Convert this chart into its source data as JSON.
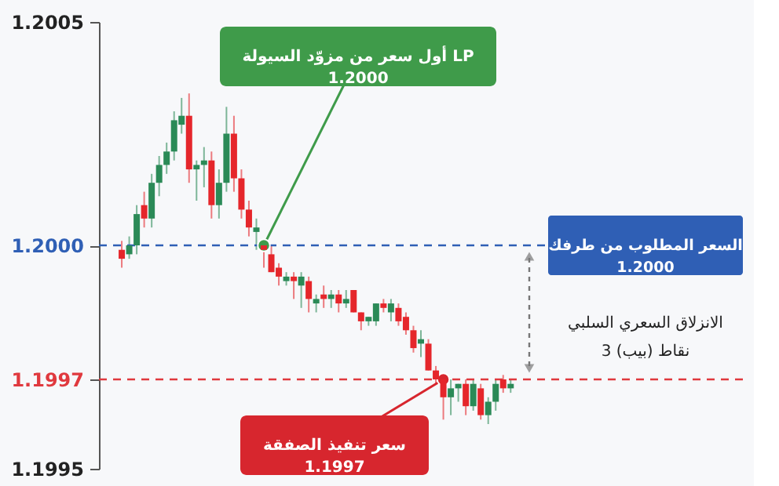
{
  "chart_data": {
    "type": "candlestick",
    "categories": [
      null,
      null,
      null,
      null,
      null,
      null,
      null,
      null,
      null,
      null,
      null,
      null,
      null,
      null,
      null,
      null,
      null,
      null,
      null,
      null,
      null,
      null,
      null,
      null,
      null,
      null,
      null,
      null,
      null,
      null,
      null,
      null,
      null,
      null,
      null,
      null,
      null,
      null,
      null,
      null,
      null,
      null,
      null,
      null,
      null,
      null,
      null,
      null,
      null,
      null,
      null,
      null,
      null
    ],
    "ohlc": [
      [
        1.19999,
        1.20001,
        1.19995,
        1.19997
      ],
      [
        1.19998,
        1.20002,
        1.19997,
        1.2
      ],
      [
        1.2,
        1.20009,
        1.19998,
        1.20007
      ],
      [
        1.20009,
        1.20012,
        1.20004,
        1.20006
      ],
      [
        1.20006,
        1.20016,
        1.20004,
        1.20014
      ],
      [
        1.20014,
        1.2002,
        1.20011,
        1.20018
      ],
      [
        1.20018,
        1.20023,
        1.20016,
        1.20021
      ],
      [
        1.20021,
        1.2003,
        1.20019,
        1.20028
      ],
      [
        1.20027,
        1.20033,
        1.20025,
        1.20029
      ],
      [
        1.20029,
        1.20034,
        1.20014,
        1.20017
      ],
      [
        1.20017,
        1.20019,
        1.2001,
        1.20018
      ],
      [
        1.20018,
        1.20022,
        1.20013,
        1.20019
      ],
      [
        1.20019,
        1.20021,
        1.20006,
        1.20009
      ],
      [
        1.20009,
        1.20017,
        1.20006,
        1.20014
      ],
      [
        1.20014,
        1.20031,
        1.20012,
        1.20025
      ],
      [
        1.20025,
        1.20029,
        1.20012,
        1.20015
      ],
      [
        1.20015,
        1.20017,
        1.20006,
        1.20008
      ],
      [
        1.20008,
        1.2001,
        1.20002,
        1.20004
      ],
      [
        1.20003,
        1.20006,
        1.19999,
        1.20004
      ],
      [
        1.2,
        1.20001,
        1.19995,
        1.19999
      ],
      [
        1.19998,
        1.2,
        1.19994,
        1.19994
      ],
      [
        1.19995,
        1.19996,
        1.19991,
        1.19993
      ],
      [
        1.19992,
        1.19994,
        1.19991,
        1.19993
      ],
      [
        1.19993,
        1.19994,
        1.19988,
        1.19992
      ],
      [
        1.19991,
        1.19994,
        1.19986,
        1.19993
      ],
      [
        1.19992,
        1.19993,
        1.19985,
        1.19988
      ],
      [
        1.19987,
        1.19989,
        1.19985,
        1.19988
      ],
      [
        1.19989,
        1.19991,
        1.19986,
        1.19988
      ],
      [
        1.19988,
        1.1999,
        1.19986,
        1.19989
      ],
      [
        1.19989,
        1.1999,
        1.19985,
        1.19987
      ],
      [
        1.19987,
        1.1999,
        1.19986,
        1.19988
      ],
      [
        1.1999,
        1.1999,
        1.19985,
        1.19985
      ],
      [
        1.19985,
        1.19985,
        1.19981,
        1.19983
      ],
      [
        1.19983,
        1.19984,
        1.19982,
        1.19984
      ],
      [
        1.19983,
        1.19987,
        1.19982,
        1.19987
      ],
      [
        1.19987,
        1.19988,
        1.19985,
        1.19986
      ],
      [
        1.19985,
        1.19988,
        1.19983,
        1.19987
      ],
      [
        1.19986,
        1.19987,
        1.19982,
        1.19983
      ],
      [
        1.19984,
        1.19985,
        1.1998,
        1.19981
      ],
      [
        1.19981,
        1.19982,
        1.19976,
        1.19977
      ],
      [
        1.19978,
        1.19981,
        1.19975,
        1.19979
      ],
      [
        1.19978,
        1.19979,
        1.19972,
        1.19972
      ],
      [
        1.19972,
        1.19973,
        1.19969,
        1.1997
      ],
      [
        1.1997,
        1.1997,
        1.19961,
        1.19966
      ],
      [
        1.19966,
        1.1997,
        1.19962,
        1.19968
      ],
      [
        1.19968,
        1.19969,
        1.19965,
        1.19969
      ],
      [
        1.19969,
        1.1997,
        1.19962,
        1.19964
      ],
      [
        1.19964,
        1.1997,
        1.19963,
        1.19969
      ],
      [
        1.19968,
        1.19969,
        1.19961,
        1.19962
      ],
      [
        1.19962,
        1.19966,
        1.1996,
        1.19965
      ],
      [
        1.19965,
        1.1997,
        1.19963,
        1.19969
      ],
      [
        1.1997,
        1.19971,
        1.19967,
        1.19968
      ],
      [
        1.19968,
        1.1997,
        1.19967,
        1.19969
      ]
    ],
    "colors": [
      "#e5262b",
      "#2b8a57",
      "#2b8a57",
      "#e5262b",
      "#2b8a57",
      "#2b8a57",
      "#2b8a57",
      "#2b8a57",
      "#2b8a57",
      "#e5262b",
      "#2b8a57",
      "#2b8a57",
      "#e5262b",
      "#2b8a57",
      "#2b8a57",
      "#e5262b",
      "#e5262b",
      "#e5262b",
      "#2b8a57",
      "#e5262b",
      "#e5262b",
      "#e5262b",
      "#2b8a57",
      "#e5262b",
      "#2b8a57",
      "#e5262b",
      "#2b8a57",
      "#e5262b",
      "#2b8a57",
      "#e5262b",
      "#2b8a57",
      "#e5262b",
      "#e5262b",
      "#2b8a57",
      "#2b8a57",
      "#e5262b",
      "#2b8a57",
      "#e5262b",
      "#e5262b",
      "#e5262b",
      "#2b8a57",
      "#e5262b",
      "#e5262b",
      "#e5262b",
      "#2b8a57",
      "#2b8a57",
      "#e5262b",
      "#2b8a57",
      "#e5262b",
      "#2b8a57",
      "#2b8a57",
      "#e5262b",
      "#2b8a57"
    ],
    "ylim": [
      1.1995,
      1.2005
    ],
    "yticks": [
      1.1995,
      1.1997,
      {
        "value": 1.2,
        "label": "1.2000"
      },
      1.2005
    ],
    "ref_lines": [
      {
        "axis": "y",
        "value": 1.2,
        "label": "السعر المطلوب من طرفك\n1.2000",
        "color": "#2f5fb5",
        "line_style": "dashed"
      },
      {
        "axis": "y",
        "value": 1.1997,
        "color": "#e0393e",
        "line_style": "dashed"
      }
    ],
    "annotations": [
      "أول سعر من مزوّد السيولة LP\n1.2000",
      "سعر تنفيذ الصفقة\n1.1997",
      "الانزلاق السعري السلبي\n3 نقاط (بيب)"
    ],
    "grid": false,
    "tick_labels": "y"
  }
}
